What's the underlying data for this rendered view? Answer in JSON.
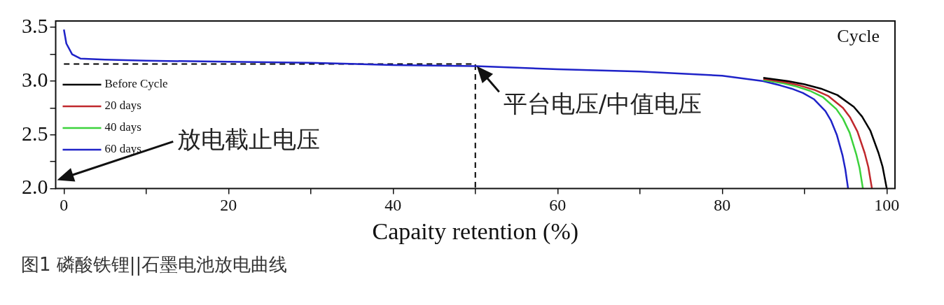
{
  "chart_data": {
    "type": "line",
    "title": "图1  磷酸铁锂||石墨电池放电曲线",
    "xlabel": "Capaity retention (%)",
    "xlim": [
      -1,
      101
    ],
    "ylim": [
      2.0,
      3.56
    ],
    "xticks": [
      0,
      {
        "value": 10,
        "label": null
      },
      20,
      {
        "value": 30,
        "label": null
      },
      40,
      {
        "value": 50,
        "label": null
      },
      60,
      {
        "value": 70,
        "label": null
      },
      80,
      {
        "value": 90,
        "label": null
      },
      {
        "value": 100,
        "label": "100"
      }
    ],
    "yticks": [
      {
        "value": 2.0,
        "label": "2.0"
      },
      {
        "value": 2.25,
        "label": null
      },
      2.5,
      {
        "value": 2.75,
        "label": null
      },
      {
        "value": 3.0,
        "label": "3.0"
      },
      {
        "value": 3.25,
        "label": null
      },
      3.5
    ],
    "grid": false,
    "legend": "left",
    "marker": "none",
    "line_style": "solid",
    "annotations": [
      "Cycle",
      {
        "text": "平台电压/中值电压",
        "x": 50,
        "y": 3.16
      },
      "放电截止电压"
    ],
    "series": [
      {
        "name": "Before Cycle",
        "color": "#000000",
        "x": [
          85,
          88,
          90,
          92,
          94,
          96,
          97,
          98,
          99,
          99.5,
          100
        ],
        "values": [
          3.03,
          3.0,
          2.97,
          2.93,
          2.87,
          2.76,
          2.67,
          2.54,
          2.33,
          2.2,
          2.0
        ]
      },
      {
        "name": "20 days",
        "color": "#c0282d",
        "x": [
          85,
          87.64,
          89.4,
          91.16,
          92.92,
          94.68,
          95.56,
          96.44,
          97.32,
          97.76,
          98.2
        ],
        "values": [
          3.02,
          2.99,
          2.96,
          2.92,
          2.86,
          2.75,
          2.66,
          2.53,
          2.33,
          2.2,
          2.0
        ]
      },
      {
        "name": "40 days",
        "color": "#3cd23c",
        "x": [
          85,
          87.42,
          89.03,
          90.65,
          92.26,
          93.87,
          94.68,
          95.49,
          96.29,
          96.7,
          97.1
        ],
        "values": [
          3.01,
          2.98,
          2.95,
          2.91,
          2.85,
          2.74,
          2.65,
          2.52,
          2.32,
          2.19,
          2.0
        ]
      },
      {
        "name": "60 days",
        "color": "#1f23c8",
        "x": [
          0,
          0.3,
          1,
          2,
          5,
          10,
          20,
          30,
          40,
          50,
          60,
          70,
          80,
          85,
          87.06,
          88.43,
          89.81,
          91.18,
          92.55,
          93.24,
          93.93,
          94.62,
          94.96,
          95.3
        ],
        "values": [
          3.48,
          3.35,
          3.25,
          3.21,
          3.2,
          3.19,
          3.18,
          3.17,
          3.15,
          3.14,
          3.11,
          3.09,
          3.05,
          3.0,
          2.96,
          2.93,
          2.89,
          2.83,
          2.72,
          2.63,
          2.5,
          2.31,
          2.18,
          2.0
        ]
      },
      {
        "color": "#000000",
        "line_style": "dashed",
        "x": [
          0,
          50,
          50
        ],
        "values": [
          3.16,
          3.16,
          2.0
        ]
      }
    ]
  }
}
